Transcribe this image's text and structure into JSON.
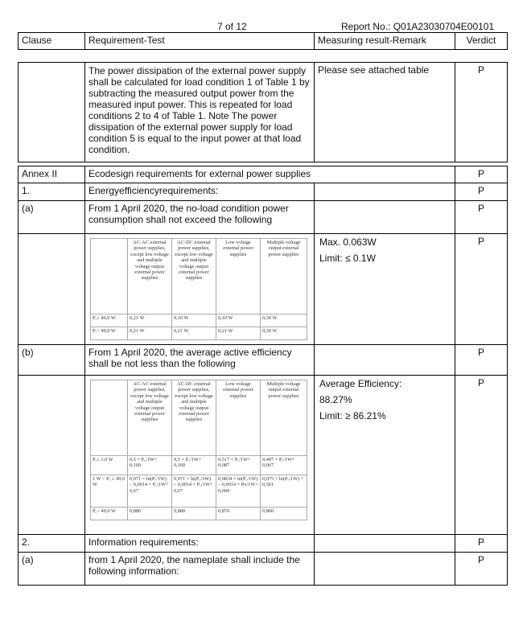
{
  "header": {
    "page": "7 of 12",
    "report_no": "Report No.: Q01A23030704E00101",
    "columns": [
      "Clause",
      "Requirement-Test",
      "Measuring result-Remark",
      "Verdict"
    ]
  },
  "block1": {
    "clause": "",
    "text": "The power dissipation of the external power supply shall be calculated for load condition 1 of Table 1 by subtracting the measured output power from the measured input power. This is repeated for load conditions 2 to 4 of Table 1. Note The power dissipation of the external power supply for load condition 5 is equal to the input power at that load condition.",
    "remark": "Please see attached table",
    "verdict": "P"
  },
  "rows": {
    "annex": {
      "clause": "Annex II",
      "text": "Ecodesign requirements for external power supplies",
      "verdict": "P"
    },
    "r1": {
      "clause": "1.",
      "text": "Energyefficiencyrequirements:",
      "verdict": "P"
    },
    "ra": {
      "clause": "(a)",
      "text": "From 1 April 2020, the no-load condition power consumption shall not exceed the following",
      "verdict": "P"
    },
    "ra_table": {
      "remark1": "Max. 0.063W",
      "remark2": "Limit: ≤ 0.1W",
      "verdict": "P"
    },
    "rb": {
      "clause": "(b)",
      "text": "From 1 April 2020, the average active efficiency shall be not less than the following",
      "verdict": "P"
    },
    "rb_table": {
      "remark1": "Average Efficiency:",
      "remark2": "88.27%",
      "remark3": "Limit: ≥ 86.21%",
      "verdict": "P"
    },
    "r2": {
      "clause": "2.",
      "text": "Information requirements:",
      "verdict": "P"
    },
    "r2a": {
      "clause": "(a)",
      "text": "from 1 April 2020, the nameplate shall include the following information:",
      "verdict": "P"
    }
  },
  "inner_headers": [
    "",
    "AC-AC external power supplies, except low voltage and multiple voltage output external power supplies",
    "AC-DC external power supplies, except low voltage and multiple voltage output external power supplies",
    "Low voltage external power supplies",
    "Multiple voltage output external power supplies"
  ],
  "table_a": [
    [
      "Pₒ≤ 49,0 W",
      "0,21 W",
      "0,10 W",
      "0,10 W",
      "0,30 W"
    ],
    [
      "Pₒ> 49,0 W",
      "0,21 W",
      "0,21 W",
      "0,21 W",
      "0,30 W"
    ]
  ],
  "table_b": [
    [
      "Pₒ≤ 1,0 W",
      "0,5 × Pₒ/1W+ 0,160",
      "0,5 × Pₒ/1W+ 0,160",
      "0,517 × Pₒ/1W+ 0,087",
      "0,497 × Pₒ/1W+ 0,067"
    ],
    [
      "1 W < Pₒ ≤ 49,0 W",
      "0,071 × ln(Pₒ/1W) – 0,0014 × Pₒ/1W+ 0,67",
      "0,071 × ln(Pₒ/1W) – 0,0014 × Pₒ/1W+ 0,67",
      "0,0834 × ln(Pₒ/1W) – 0,0014 × Po/1W+ 0,609",
      "0,075 × ln(Pₒ/1W) + 0,561"
    ],
    [
      "Pₒ> 49,0 W",
      "0,880",
      "0,880",
      "0,870",
      "0,860"
    ]
  ]
}
